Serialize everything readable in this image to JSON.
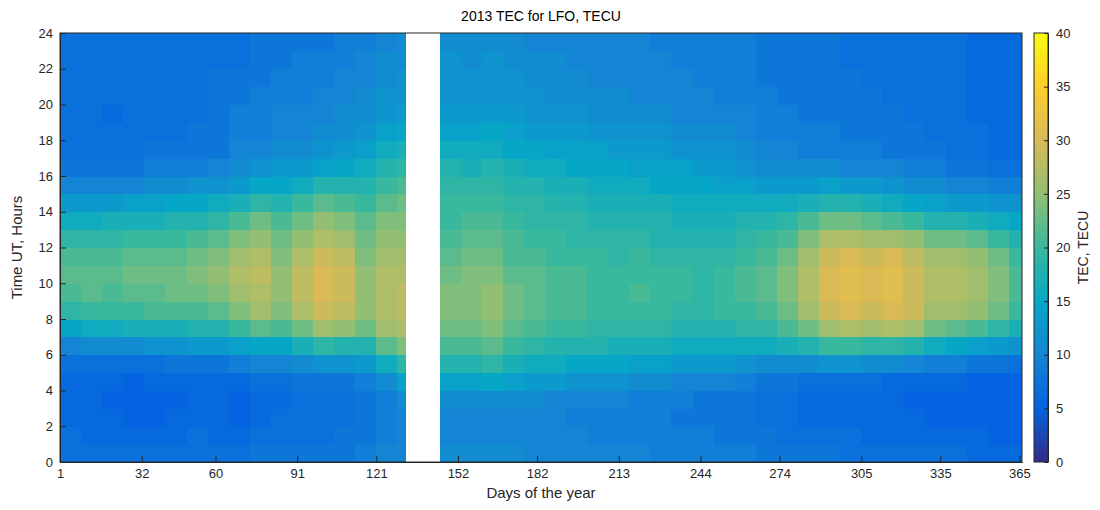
{
  "chart_data": {
    "type": "heatmap",
    "title": "2013 TEC for LFO, TECU",
    "x_label": "Days of the year",
    "y_label": "Time UT, Hours",
    "x": [
      1,
      9,
      17,
      25,
      33,
      41,
      49,
      57,
      65,
      73,
      81,
      89,
      97,
      105,
      113,
      121,
      129,
      132,
      145,
      153,
      161,
      169,
      177,
      185,
      193,
      201,
      209,
      217,
      225,
      233,
      241,
      249,
      257,
      265,
      273,
      281,
      289,
      297,
      305,
      313,
      321,
      329,
      337,
      345,
      353,
      361
    ],
    "y": [
      0,
      1,
      2,
      3,
      4,
      5,
      6,
      7,
      8,
      9,
      10,
      11,
      12,
      13,
      14,
      15,
      16,
      17,
      18,
      19,
      20,
      21,
      22,
      23
    ],
    "xlim": [
      1,
      366
    ],
    "ylim": [
      0,
      24
    ],
    "xticks": [
      1,
      32,
      60,
      91,
      121,
      152,
      182,
      213,
      244,
      274,
      305,
      335,
      365
    ],
    "yticks": [
      0,
      2,
      4,
      6,
      8,
      10,
      12,
      14,
      16,
      18,
      20,
      22,
      24
    ],
    "cells": [
      [
        7,
        7,
        6,
        6,
        6,
        7,
        10,
        15,
        19,
        21,
        22,
        21,
        19,
        16,
        13,
        10,
        8,
        7,
        7,
        7,
        7,
        7,
        7,
        7
      ],
      [
        7,
        6,
        6,
        6,
        6,
        7,
        11,
        16,
        20,
        22,
        22,
        21,
        19,
        16,
        13,
        10,
        8,
        7,
        7,
        7,
        7,
        7,
        7,
        7
      ],
      [
        7,
        6,
        6,
        5,
        6,
        7,
        11,
        16,
        20,
        21,
        22,
        21,
        19,
        17,
        13,
        10,
        8,
        7,
        7,
        6,
        7,
        7,
        7,
        7
      ],
      [
        7,
        6,
        5,
        5,
        5,
        7,
        11,
        17,
        20,
        22,
        23,
        22,
        20,
        17,
        14,
        10,
        8,
        7,
        7,
        7,
        7,
        7,
        7,
        7
      ],
      [
        7,
        6,
        5,
        5,
        6,
        7,
        12,
        17,
        21,
        22,
        23,
        22,
        20,
        17,
        14,
        11,
        9,
        8,
        7,
        7,
        7,
        7,
        7,
        7
      ],
      [
        7,
        6,
        6,
        5,
        6,
        8,
        12,
        17,
        21,
        23,
        23,
        22,
        20,
        18,
        15,
        11,
        9,
        8,
        7,
        7,
        7,
        7,
        7,
        7
      ],
      [
        7,
        7,
        6,
        6,
        6,
        8,
        13,
        18,
        21,
        23,
        24,
        23,
        21,
        18,
        15,
        12,
        9,
        8,
        8,
        7,
        7,
        7,
        7,
        7
      ],
      [
        7,
        6,
        6,
        6,
        6,
        8,
        13,
        18,
        22,
        24,
        25,
        24,
        22,
        19,
        16,
        12,
        10,
        8,
        8,
        8,
        8,
        8,
        7,
        7
      ],
      [
        7,
        6,
        5,
        5,
        6,
        9,
        14,
        20,
        24,
        26,
        27,
        26,
        24,
        21,
        17,
        13,
        11,
        10,
        9,
        9,
        8,
        8,
        7,
        7
      ],
      [
        8,
        7,
        6,
        6,
        7,
        10,
        15,
        22,
        26,
        27,
        28,
        27,
        25,
        23,
        19,
        15,
        12,
        10,
        9,
        9,
        9,
        8,
        8,
        8
      ],
      [
        8,
        7,
        7,
        6,
        7,
        10,
        15,
        21,
        24,
        25,
        25,
        24,
        23,
        21,
        18,
        15,
        13,
        11,
        10,
        10,
        9,
        9,
        8,
        8
      ],
      [
        8,
        7,
        7,
        7,
        8,
        11,
        17,
        23,
        27,
        28,
        28,
        27,
        25,
        23,
        20,
        16,
        13,
        11,
        10,
        10,
        9,
        9,
        9,
        8
      ],
      [
        8,
        7,
        7,
        7,
        8,
        12,
        19,
        26,
        29,
        30,
        30,
        29,
        27,
        25,
        22,
        18,
        14,
        12,
        11,
        10,
        10,
        9,
        9,
        8
      ],
      [
        8,
        8,
        7,
        7,
        8,
        12,
        18,
        25,
        28,
        29,
        29,
        28,
        26,
        24,
        21,
        18,
        15,
        13,
        11,
        11,
        10,
        10,
        9,
        9
      ],
      [
        9,
        8,
        8,
        8,
        9,
        13,
        18,
        23,
        25,
        25,
        25,
        24,
        23,
        22,
        20,
        18,
        16,
        14,
        12,
        11,
        11,
        10,
        10,
        9
      ],
      [
        10,
        9,
        9,
        9,
        11,
        16,
        22,
        26,
        27,
        27,
        27,
        26,
        25,
        24,
        22,
        20,
        18,
        16,
        14,
        12,
        12,
        11,
        11,
        10
      ],
      [
        10,
        10,
        10,
        11,
        14,
        19,
        24,
        27,
        28,
        28,
        27,
        26,
        25,
        24,
        23,
        21,
        19,
        17,
        15,
        13,
        12,
        12,
        11,
        11
      ],
      [
        null,
        null,
        null,
        null,
        null,
        null,
        null,
        null,
        null,
        null,
        null,
        null,
        null,
        null,
        null,
        null,
        null,
        null,
        null,
        null,
        null,
        null,
        null,
        null
      ],
      [
        11,
        10,
        10,
        11,
        14,
        18,
        21,
        23,
        24,
        24,
        23,
        22,
        21,
        20,
        20,
        19,
        18,
        16,
        14,
        13,
        12,
        12,
        12,
        11
      ],
      [
        11,
        10,
        10,
        11,
        14,
        18,
        21,
        23,
        24,
        24,
        24,
        23,
        22,
        21,
        20,
        19,
        17,
        16,
        14,
        13,
        12,
        12,
        11,
        11
      ],
      [
        11,
        10,
        10,
        11,
        15,
        19,
        22,
        24,
        25,
        25,
        24,
        23,
        22,
        21,
        20,
        19,
        18,
        16,
        15,
        13,
        12,
        12,
        12,
        11
      ],
      [
        11,
        10,
        10,
        11,
        14,
        17,
        20,
        22,
        23,
        23,
        22,
        21,
        21,
        20,
        19,
        18,
        17,
        15,
        14,
        13,
        12,
        12,
        11,
        11
      ],
      [
        10,
        10,
        10,
        11,
        13,
        16,
        19,
        21,
        22,
        22,
        22,
        21,
        20,
        19,
        19,
        18,
        16,
        15,
        13,
        12,
        12,
        11,
        11,
        10
      ],
      [
        10,
        10,
        10,
        10,
        13,
        16,
        18,
        20,
        21,
        21,
        21,
        20,
        20,
        19,
        18,
        17,
        16,
        14,
        13,
        12,
        11,
        11,
        11,
        10
      ],
      [
        10,
        10,
        9,
        10,
        12,
        15,
        18,
        20,
        21,
        21,
        21,
        20,
        19,
        19,
        18,
        17,
        15,
        14,
        13,
        12,
        11,
        11,
        10,
        10
      ],
      [
        10,
        9,
        9,
        10,
        12,
        15,
        18,
        19,
        20,
        20,
        20,
        20,
        19,
        18,
        17,
        16,
        15,
        14,
        12,
        11,
        11,
        10,
        10,
        10
      ],
      [
        10,
        9,
        9,
        10,
        12,
        15,
        17,
        19,
        20,
        20,
        20,
        19,
        19,
        18,
        17,
        16,
        15,
        13,
        12,
        11,
        11,
        10,
        10,
        10
      ],
      [
        10,
        9,
        9,
        9,
        11,
        14,
        17,
        19,
        20,
        21,
        20,
        20,
        19,
        18,
        17,
        16,
        14,
        13,
        12,
        11,
        10,
        10,
        10,
        10
      ],
      [
        9,
        9,
        9,
        9,
        11,
        14,
        17,
        19,
        20,
        20,
        20,
        19,
        18,
        18,
        17,
        15,
        14,
        13,
        12,
        11,
        10,
        10,
        10,
        9
      ],
      [
        9,
        9,
        8,
        9,
        10,
        13,
        16,
        18,
        19,
        20,
        20,
        19,
        18,
        17,
        16,
        15,
        14,
        12,
        11,
        10,
        10,
        10,
        9,
        9
      ],
      [
        9,
        9,
        8,
        8,
        10,
        13,
        16,
        18,
        19,
        19,
        19,
        19,
        18,
        17,
        16,
        15,
        13,
        12,
        11,
        10,
        10,
        9,
        9,
        9
      ],
      [
        9,
        8,
        8,
        8,
        10,
        13,
        16,
        18,
        20,
        20,
        20,
        19,
        18,
        17,
        16,
        14,
        13,
        12,
        11,
        10,
        9,
        9,
        9,
        9
      ],
      [
        9,
        8,
        8,
        8,
        9,
        12,
        16,
        19,
        20,
        21,
        21,
        20,
        19,
        18,
        16,
        14,
        12,
        11,
        10,
        10,
        9,
        9,
        9,
        9
      ],
      [
        8,
        8,
        7,
        7,
        8,
        11,
        16,
        19,
        21,
        22,
        22,
        21,
        20,
        18,
        16,
        13,
        11,
        10,
        9,
        9,
        9,
        8,
        8,
        8
      ],
      [
        8,
        7,
        7,
        7,
        8,
        11,
        17,
        21,
        23,
        24,
        24,
        23,
        21,
        19,
        16,
        13,
        11,
        10,
        9,
        9,
        8,
        8,
        8,
        8
      ],
      [
        8,
        7,
        6,
        6,
        7,
        11,
        18,
        23,
        26,
        27,
        27,
        26,
        24,
        21,
        17,
        13,
        11,
        9,
        9,
        8,
        8,
        8,
        8,
        8
      ],
      [
        8,
        7,
        6,
        6,
        7,
        12,
        20,
        26,
        29,
        30,
        30,
        29,
        27,
        23,
        18,
        14,
        11,
        9,
        9,
        8,
        8,
        8,
        8,
        8
      ],
      [
        7,
        7,
        6,
        6,
        7,
        12,
        20,
        27,
        30,
        31,
        31,
        30,
        27,
        23,
        18,
        13,
        10,
        9,
        8,
        8,
        8,
        8,
        7,
        7
      ],
      [
        7,
        6,
        6,
        6,
        7,
        11,
        19,
        26,
        29,
        30,
        30,
        29,
        26,
        22,
        17,
        13,
        10,
        9,
        8,
        8,
        8,
        7,
        7,
        7
      ],
      [
        7,
        6,
        6,
        6,
        6,
        11,
        19,
        27,
        30,
        31,
        31,
        30,
        26,
        21,
        16,
        12,
        10,
        8,
        8,
        8,
        7,
        7,
        7,
        7
      ],
      [
        7,
        6,
        6,
        5,
        6,
        10,
        18,
        26,
        29,
        29,
        29,
        28,
        25,
        20,
        15,
        11,
        9,
        8,
        8,
        7,
        7,
        7,
        7,
        7
      ],
      [
        7,
        6,
        5,
        5,
        6,
        9,
        16,
        23,
        26,
        27,
        27,
        26,
        23,
        18,
        14,
        11,
        9,
        8,
        7,
        7,
        7,
        7,
        7,
        7
      ],
      [
        7,
        6,
        5,
        5,
        6,
        9,
        15,
        22,
        26,
        27,
        27,
        26,
        23,
        18,
        13,
        10,
        8,
        7,
        7,
        7,
        7,
        7,
        7,
        7
      ],
      [
        6,
        6,
        5,
        5,
        5,
        8,
        14,
        21,
        25,
        26,
        26,
        25,
        22,
        17,
        13,
        10,
        8,
        7,
        7,
        6,
        6,
        6,
        6,
        6
      ],
      [
        6,
        5,
        5,
        5,
        5,
        8,
        13,
        19,
        23,
        24,
        24,
        23,
        20,
        16,
        12,
        9,
        7,
        6,
        6,
        6,
        6,
        6,
        6,
        6
      ],
      [
        6,
        5,
        5,
        5,
        5,
        7,
        12,
        17,
        20,
        21,
        21,
        20,
        18,
        15,
        12,
        9,
        7,
        6,
        6,
        6,
        6,
        6,
        6,
        6
      ]
    ],
    "colorbar": {
      "label": "TEC, TECU",
      "lim": [
        0,
        40
      ],
      "ticks": [
        0,
        5,
        10,
        15,
        20,
        25,
        30,
        35,
        40
      ]
    }
  }
}
